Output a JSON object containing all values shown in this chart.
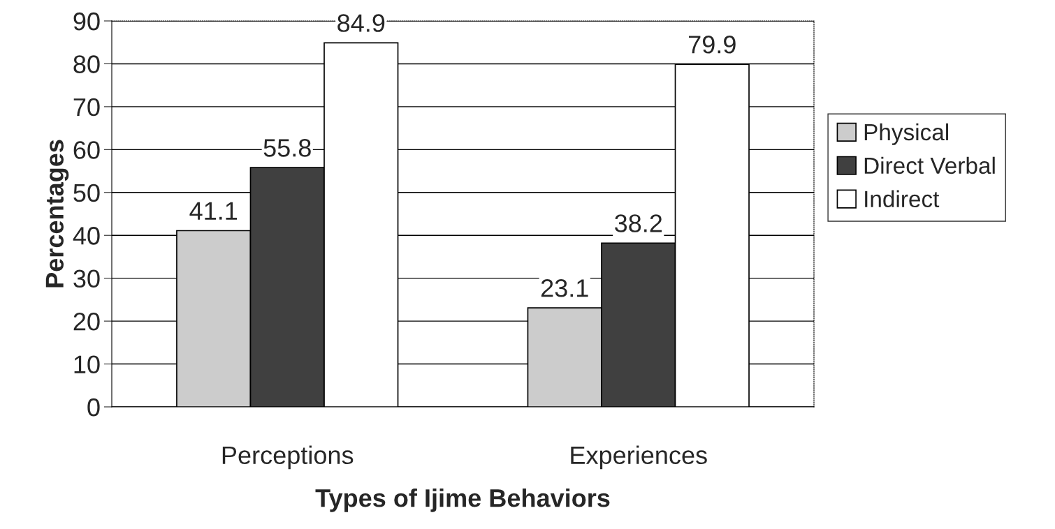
{
  "chart_data": {
    "type": "bar",
    "xlabel": "Types of Ijime Behaviors",
    "ylabel": "Percentages",
    "categories": [
      "Perceptions",
      "Experiences"
    ],
    "series": [
      {
        "name": "Physical",
        "color": "#cccccc",
        "values": [
          41.1,
          23.1
        ]
      },
      {
        "name": "Direct Verbal",
        "color": "#404040",
        "values": [
          55.8,
          38.2
        ]
      },
      {
        "name": "Indirect",
        "color": "#ffffff",
        "values": [
          84.9,
          79.9
        ]
      }
    ],
    "ylim": [
      0,
      90
    ],
    "yticks": [
      0,
      10,
      20,
      30,
      40,
      50,
      60,
      70,
      80,
      90
    ],
    "grid": "y",
    "legend": "right",
    "data_labels": true
  }
}
